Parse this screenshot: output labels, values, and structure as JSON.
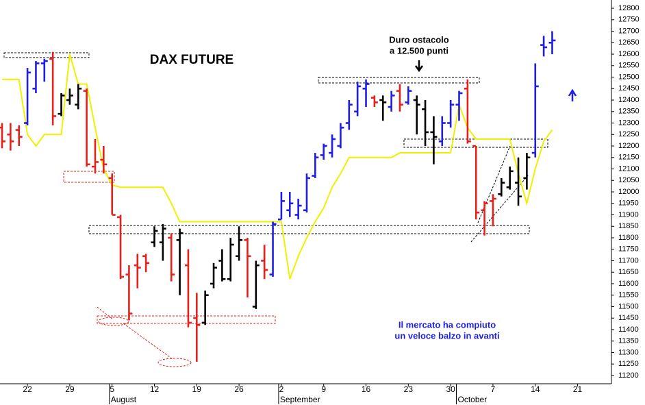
{
  "chart_data": {
    "type": "ohlc",
    "title": "DAX FUTURE",
    "annotations": [
      "Duro ostacolo",
      "a 12.500 punti",
      "Il mercato ha compiuto",
      "un veloce balzo in avanti"
    ],
    "categories": [
      null,
      null,
      null,
      "22",
      null,
      null,
      null,
      null,
      "29",
      null,
      null,
      null,
      null,
      "5",
      null,
      null,
      null,
      null,
      "12",
      null,
      null,
      null,
      null,
      "19",
      null,
      null,
      null,
      null,
      "26",
      null,
      null,
      null,
      null,
      "2",
      null,
      null,
      null,
      null,
      "9",
      null,
      null,
      null,
      null,
      "16",
      null,
      null,
      null,
      null,
      "23",
      null,
      null,
      null,
      null,
      "30",
      null,
      null,
      null,
      null,
      "7",
      null,
      null,
      null,
      null,
      "14",
      null,
      null,
      null,
      null,
      "21",
      null,
      null,
      null
    ],
    "months": [
      {
        "text": "August",
        "category": 13
      },
      {
        "text": "September",
        "category": 33
      },
      {
        "text": "October",
        "category": 54
      }
    ],
    "open": [
      12280,
      12250,
      12270,
      12300,
      12450,
      12560,
      12580,
      12340,
      12400,
      12380,
      12440,
      12110,
      12140,
      12060,
      11890,
      11640,
      11680,
      11720,
      11780,
      11780,
      11800,
      11790,
      11680,
      11450,
      11430,
      11600,
      11700,
      11620,
      11720,
      11790,
      11500,
      11700,
      11640,
      11880,
      11920,
      11900,
      11920,
      12070,
      12160,
      12170,
      12200,
      12300,
      12350,
      12450,
      12410,
      12400,
      12370,
      12440,
      12390,
      12400,
      12360,
      12260,
      12220,
      12300,
      12380,
      12450,
      12200,
      11920,
      11960,
      11990,
      12020,
      12040,
      12060,
      12170,
      12640,
      12650,
      null,
      null,
      null,
      null,
      null,
      null
    ],
    "high": [
      12300,
      12300,
      12290,
      12540,
      12570,
      12580,
      12610,
      12430,
      12450,
      12470,
      12450,
      12230,
      12200,
      12080,
      11900,
      11680,
      11730,
      11730,
      11850,
      11860,
      11820,
      11840,
      11750,
      11560,
      11570,
      11690,
      11750,
      11800,
      11850,
      11800,
      11700,
      11770,
      11870,
      12000,
      12000,
      11970,
      12080,
      12170,
      12210,
      12250,
      12300,
      12400,
      12480,
      12490,
      12420,
      12420,
      12440,
      12470,
      12460,
      12420,
      12400,
      12330,
      12330,
      12400,
      12440,
      12490,
      12200,
      11960,
      11990,
      12060,
      12110,
      12150,
      12170,
      12560,
      12680,
      12700,
      null,
      null,
      null,
      null,
      null,
      null
    ],
    "low": [
      12190,
      12180,
      12200,
      12290,
      12430,
      12480,
      12290,
      12330,
      12380,
      12360,
      12110,
      12080,
      12080,
      11900,
      11620,
      11440,
      11580,
      11650,
      11760,
      11700,
      11610,
      11550,
      11410,
      11260,
      11420,
      11580,
      11610,
      11610,
      11700,
      11540,
      11490,
      11620,
      11630,
      11880,
      11890,
      11880,
      11910,
      12060,
      12140,
      12150,
      12190,
      12270,
      12330,
      12370,
      12370,
      12310,
      12350,
      12350,
      12380,
      12250,
      12200,
      12120,
      12200,
      12280,
      12310,
      12210,
      11880,
      11810,
      11850,
      11980,
      12010,
      11940,
      12010,
      12150,
      12590,
      12600,
      null,
      null,
      null,
      null,
      null,
      null
    ],
    "close": [
      12220,
      12220,
      12240,
      12520,
      12560,
      12570,
      12330,
      12420,
      12420,
      12450,
      12120,
      12130,
      12120,
      11900,
      11630,
      11470,
      11670,
      11690,
      11830,
      11840,
      11640,
      11820,
      11430,
      11420,
      11550,
      11670,
      11620,
      11770,
      11790,
      11720,
      11680,
      11660,
      11860,
      11960,
      11950,
      11940,
      12060,
      12150,
      12200,
      12230,
      12280,
      12380,
      12460,
      12470,
      12390,
      12390,
      12420,
      12380,
      12440,
      12380,
      12260,
      12240,
      12300,
      12380,
      12430,
      12220,
      11910,
      11950,
      11970,
      12040,
      12090,
      11980,
      12150,
      12460,
      12630,
      12660,
      null,
      null,
      null,
      null,
      null,
      null
    ],
    "colors": [
      "#e8201a",
      "#e8201a",
      "#e8201a",
      "#1e1ee6",
      "#1e1ee6",
      "#1e1ee6",
      "#e8201a",
      "#000000",
      "#000000",
      "#000000",
      "#e8201a",
      "#e8201a",
      "#e8201a",
      "#e8201a",
      "#e8201a",
      "#e8201a",
      "#e8201a",
      "#e8201a",
      "#000000",
      "#000000",
      "#e8201a",
      "#000000",
      "#e8201a",
      "#e8201a",
      "#000000",
      "#000000",
      "#000000",
      "#000000",
      "#000000",
      "#e8201a",
      "#000000",
      "#e8201a",
      "#1e1ee6",
      "#1e1ee6",
      "#1e1ee6",
      "#1e1ee6",
      "#1e1ee6",
      "#1e1ee6",
      "#1e1ee6",
      "#1e1ee6",
      "#1e1ee6",
      "#1e1ee6",
      "#1e1ee6",
      "#1e1ee6",
      "#e8201a",
      "#000000",
      "#1e1ee6",
      "#e8201a",
      "#1e1ee6",
      "#000000",
      "#000000",
      "#000000",
      "#1e1ee6",
      "#1e1ee6",
      "#1e1ee6",
      "#e8201a",
      "#e8201a",
      "#e8201a",
      "#e8201a",
      "#000000",
      "#000000",
      "#000000",
      "#000000",
      "#1e1ee6",
      "#1e1ee6",
      "#1e1ee6",
      null,
      null,
      null,
      null,
      null,
      null
    ],
    "line": {
      "color": "#f0f000",
      "values": [
        12490,
        12490,
        12490,
        12250,
        12200,
        12250,
        12250,
        12250,
        12600,
        12470,
        12470,
        12280,
        12100,
        12030,
        12020,
        12020,
        12020,
        12020,
        12020,
        12020,
        11950,
        11870,
        11870,
        11870,
        11870,
        11870,
        11870,
        11870,
        11870,
        11870,
        11870,
        11870,
        11870,
        11870,
        11620,
        11720,
        11800,
        11870,
        11930,
        12020,
        12080,
        12150,
        12150,
        12150,
        12150,
        12150,
        12150,
        12170,
        12170,
        12170,
        12170,
        12170,
        12170,
        12170,
        12380,
        12280,
        12230,
        12230,
        12230,
        12230,
        12230,
        12080,
        11950,
        12100,
        12220,
        12270,
        null,
        null,
        null,
        null,
        null,
        null
      ]
    },
    "ylim": [
      11164,
      12836
    ],
    "yticks": [
      11200,
      11250,
      11300,
      11350,
      11400,
      11450,
      11500,
      11550,
      11600,
      11650,
      11700,
      11750,
      11800,
      11850,
      11900,
      11950,
      12000,
      12050,
      12100,
      12150,
      12200,
      12250,
      12300,
      12350,
      12400,
      12450,
      12500,
      12550,
      12600,
      12650,
      12700,
      12750,
      12800
    ]
  }
}
